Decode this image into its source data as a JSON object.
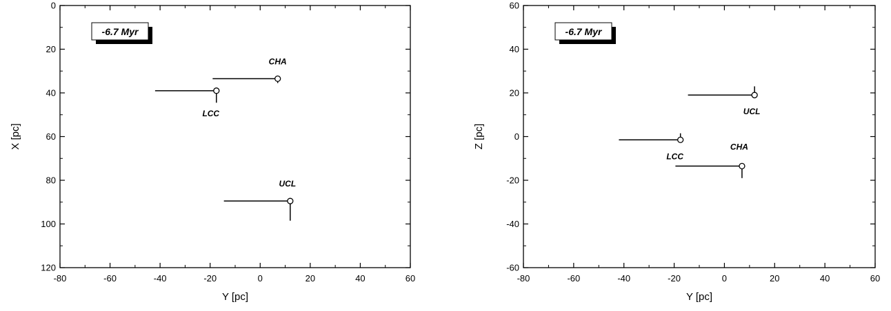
{
  "chart_data": [
    {
      "type": "scatter",
      "panel": "left",
      "annotation": "-6.7 Myr",
      "xlabel": "Y [pc]",
      "ylabel": "X [pc]",
      "xlim": [
        -80,
        60
      ],
      "ylim": [
        120,
        0
      ],
      "y_inverted": true,
      "x_ticks": [
        -80,
        -60,
        -40,
        -20,
        0,
        20,
        40,
        60
      ],
      "y_ticks": [
        0,
        20,
        40,
        60,
        80,
        100,
        120
      ],
      "grid": false,
      "points": [
        {
          "name": "CHA",
          "x": 7,
          "y": 33.5,
          "err_x_left": 26,
          "err_y_up": 0,
          "err_y_down": 2,
          "label_dx": 0,
          "label_dy": -7
        },
        {
          "name": "LCC",
          "x": -17.5,
          "y": 39,
          "err_x_left": 24.5,
          "err_y_up": 0,
          "err_y_down": 5.5,
          "label_dx": -2,
          "label_dy": 11
        },
        {
          "name": "UCL",
          "x": 12,
          "y": 89.5,
          "err_x_left": 26.5,
          "err_y_up": 0,
          "err_y_down": 9,
          "label_dx": -1,
          "label_dy": -7
        }
      ]
    },
    {
      "type": "scatter",
      "panel": "right",
      "annotation": "-6.7 Myr",
      "xlabel": "Y [pc]",
      "ylabel": "Z [pc]",
      "xlim": [
        -80,
        60
      ],
      "ylim": [
        -60,
        60
      ],
      "y_inverted": false,
      "x_ticks": [
        -80,
        -60,
        -40,
        -20,
        0,
        20,
        40,
        60
      ],
      "y_ticks": [
        -60,
        -40,
        -20,
        0,
        20,
        40,
        60
      ],
      "grid": false,
      "points": [
        {
          "name": "UCL",
          "x": 12,
          "y": 19,
          "err_x_left": 26.5,
          "err_y_up": 4,
          "err_y_down": 0,
          "label_dx": -1,
          "label_dy": 8
        },
        {
          "name": "LCC",
          "x": -17.5,
          "y": -1.5,
          "err_x_left": 24.5,
          "err_y_up": 3,
          "err_y_down": 0,
          "label_dx": -2,
          "label_dy": 8
        },
        {
          "name": "CHA",
          "x": 7,
          "y": -13.5,
          "err_x_left": 26.5,
          "err_y_up": 0,
          "err_y_down": 5.5,
          "label_dx": -1,
          "label_dy": -8
        }
      ]
    }
  ]
}
